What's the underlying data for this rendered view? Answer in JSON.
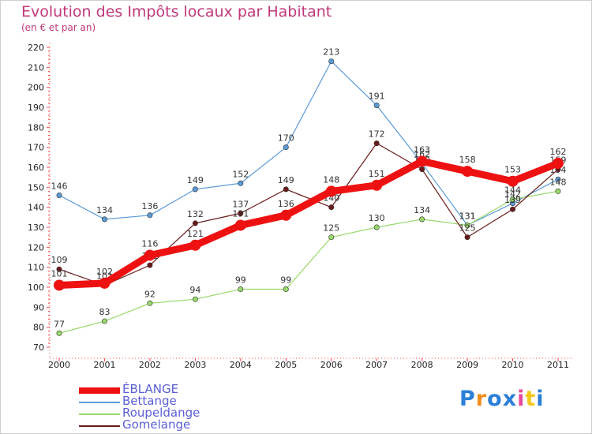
{
  "chart_data": {
    "type": "line",
    "title": "Evolution des Impôts locaux par Habitant",
    "subtitle": "(en € et par an)",
    "x": [
      "2000",
      "2001",
      "2002",
      "2003",
      "2004",
      "2005",
      "2006",
      "2007",
      "2008",
      "2009",
      "2010",
      "2011"
    ],
    "ylim": [
      70,
      220
    ],
    "yticks": [
      70,
      80,
      90,
      100,
      110,
      120,
      130,
      140,
      150,
      160,
      170,
      180,
      190,
      200,
      210,
      220
    ],
    "grid": false,
    "legend_position": "bottom-left",
    "series": [
      {
        "name": "Bettange",
        "color": "#5b9bd5",
        "values": [
          146,
          134,
          136,
          149,
          152,
          170,
          213,
          191,
          162,
          131,
          142,
          154
        ]
      },
      {
        "name": "Roupeldange",
        "color": "#99d86a",
        "values": [
          77,
          83,
          92,
          94,
          99,
          99,
          125,
          130,
          134,
          131,
          144,
          148
        ]
      },
      {
        "name": "Gomelange",
        "color": "#6a1a1a",
        "values": [
          109,
          101,
          111,
          132,
          137,
          149,
          140,
          172,
          159,
          125,
          139,
          159
        ]
      },
      {
        "name": "ÉBLANGE",
        "color": "#ee1111",
        "values": [
          101,
          102,
          116,
          121,
          131,
          136,
          148,
          151,
          163,
          158,
          153,
          162
        ]
      }
    ]
  },
  "logo": {
    "text": "Proxiti"
  }
}
